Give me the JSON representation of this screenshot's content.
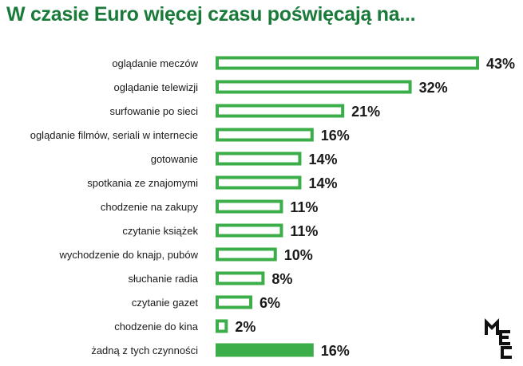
{
  "chart_data": {
    "type": "bar",
    "orientation": "horizontal",
    "title": "W czasie Euro więcej czasu poświęcają na...",
    "xlabel": "",
    "ylabel": "",
    "xlim": [
      0,
      43
    ],
    "value_suffix": "%",
    "categories": [
      "oglądanie meczów",
      "oglądanie telewizji",
      "surfowanie po sieci",
      "oglądanie filmów, seriali w internecie",
      "gotowanie",
      "spotkania ze znajomymi",
      "chodzenie na zakupy",
      "czytanie książek",
      "wychodzenie do knajp, pubów",
      "słuchanie radia",
      "czytanie gazet",
      "chodzenie do kina",
      "żadną z tych czynności"
    ],
    "values": [
      43,
      32,
      21,
      16,
      14,
      14,
      11,
      11,
      10,
      8,
      6,
      2,
      16
    ],
    "bar_style": [
      "outline",
      "outline",
      "outline",
      "outline",
      "outline",
      "outline",
      "outline",
      "outline",
      "outline",
      "outline",
      "outline",
      "outline",
      "filled"
    ],
    "colors": {
      "bar": "#3cae49",
      "title": "#1a7a3a",
      "label": "#1a1a1a",
      "value": "#1a1a1a"
    }
  },
  "logo": {
    "text": "MEC"
  }
}
